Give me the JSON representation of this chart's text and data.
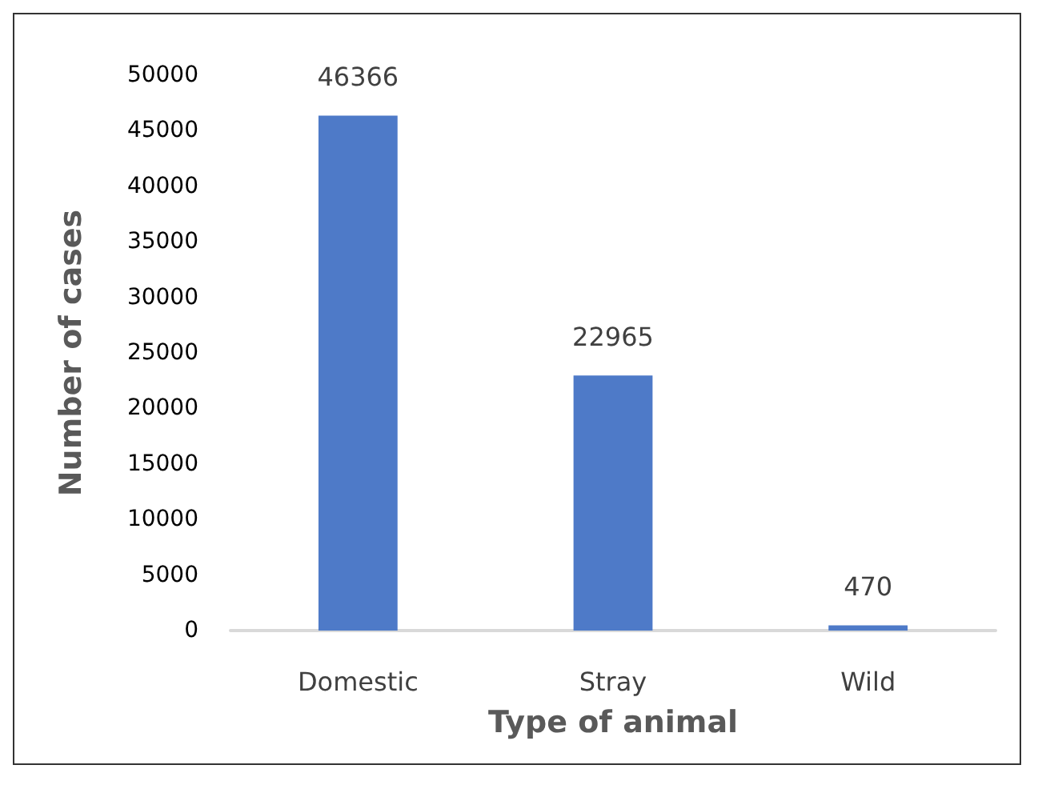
{
  "chart_data": {
    "type": "bar",
    "categories": [
      "Domestic",
      "Stray",
      "Wild"
    ],
    "values": [
      46366,
      22965,
      470
    ],
    "color": "#4e7ac8",
    "xlabel": "Type of animal",
    "ylabel": "Number of cases",
    "ylim": [
      0,
      50000
    ],
    "yticks": [
      0,
      5000,
      10000,
      15000,
      20000,
      25000,
      30000,
      35000,
      40000,
      45000,
      50000
    ],
    "grid": false,
    "data_labels": true
  }
}
